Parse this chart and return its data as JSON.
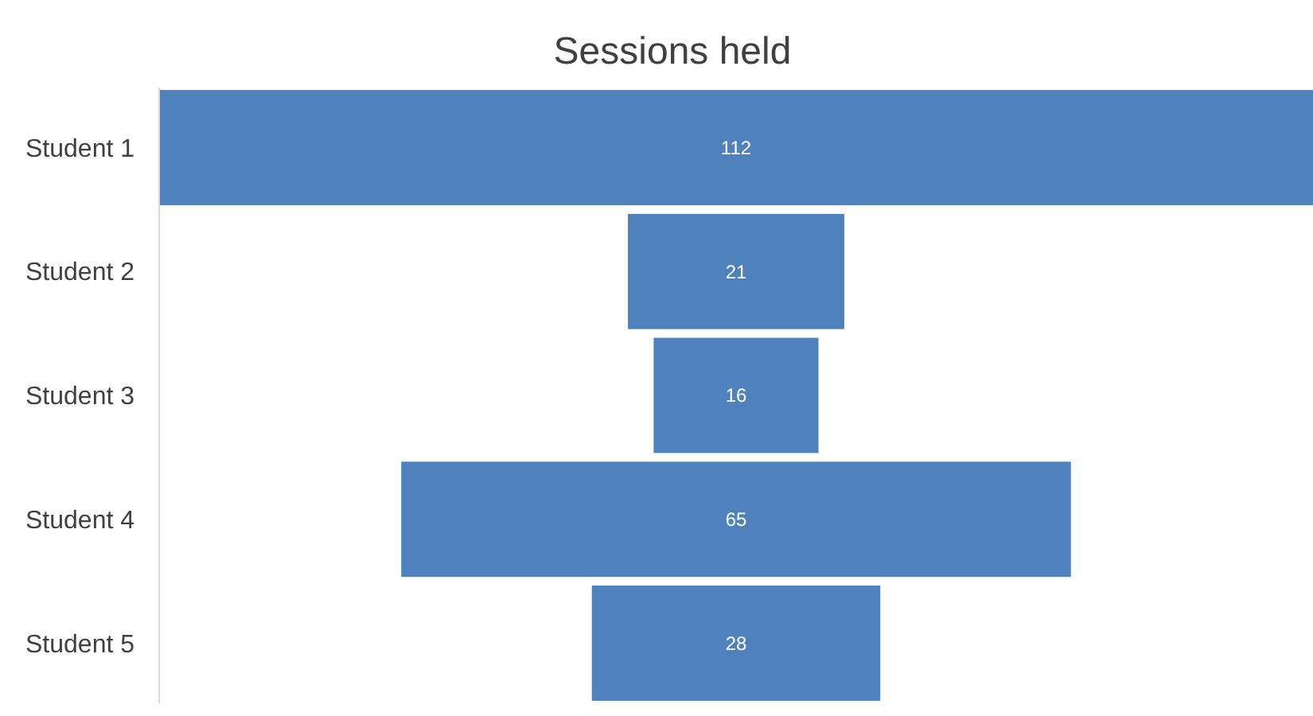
{
  "chart_data": {
    "type": "other",
    "title": "Sessions held",
    "categories": [
      "Student 1",
      "Student 2",
      "Student 3",
      "Student 4",
      "Student 5"
    ],
    "values": [
      112,
      21,
      16,
      65,
      28
    ],
    "color": "#4f81bd",
    "data_labels": true
  }
}
